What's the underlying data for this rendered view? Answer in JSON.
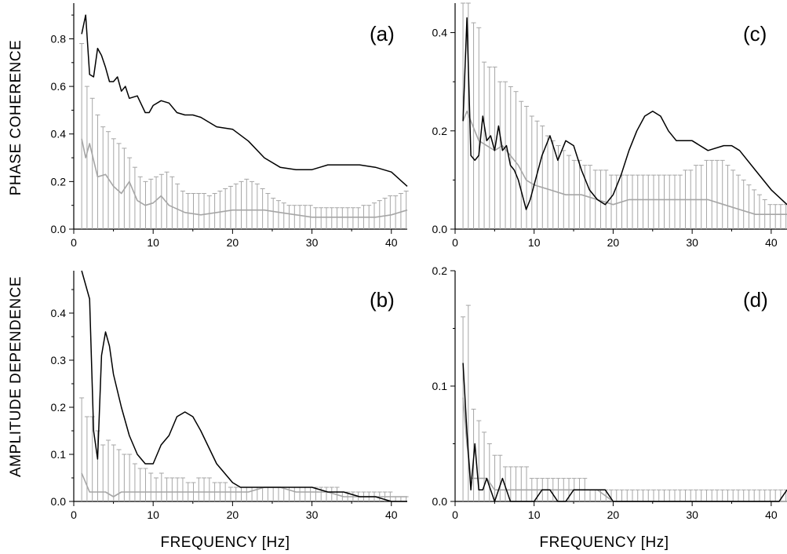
{
  "axis_titles": {
    "y_top": "PHASE  COHERENCE",
    "y_bottom": "AMPLITUDE  DEPENDENCE",
    "x_left": "FREQUENCY [Hz]",
    "x_right": "FREQUENCY [Hz]"
  },
  "colors": {
    "observed": "#000000",
    "surrogate_mean": "#a6a6a6",
    "error_bar": "#a6a6a6"
  },
  "chart_data": [
    {
      "panel": "(a)",
      "type": "line",
      "xlim": [
        0,
        42
      ],
      "ylim": [
        0,
        0.95
      ],
      "xticks": [
        0,
        10,
        20,
        30,
        40
      ],
      "xtick_labels": [
        "0",
        "10",
        "20",
        "30",
        "40"
      ],
      "yticks": [
        0,
        0.2,
        0.4,
        0.6,
        0.8
      ],
      "ytick_labels": [
        "0.0",
        "0.2",
        "0.4",
        "0.6",
        "0.8"
      ],
      "observed": {
        "x": [
          1,
          1.5,
          2,
          2.5,
          3,
          3.5,
          4,
          4.5,
          5,
          5.5,
          6,
          6.5,
          7,
          8,
          9,
          9.5,
          10,
          11,
          12,
          13,
          14,
          15,
          16,
          18,
          20,
          22,
          24,
          26,
          28,
          30,
          31,
          32,
          34,
          36,
          38,
          40,
          42
        ],
        "y": [
          0.82,
          0.9,
          0.65,
          0.64,
          0.76,
          0.73,
          0.68,
          0.62,
          0.62,
          0.64,
          0.58,
          0.6,
          0.55,
          0.56,
          0.49,
          0.49,
          0.52,
          0.54,
          0.53,
          0.49,
          0.48,
          0.48,
          0.47,
          0.43,
          0.42,
          0.37,
          0.3,
          0.26,
          0.25,
          0.25,
          0.26,
          0.27,
          0.27,
          0.27,
          0.26,
          0.24,
          0.18
        ]
      },
      "surrogate_mean": {
        "x": [
          1,
          1.5,
          2,
          3,
          4,
          5,
          6,
          7,
          8,
          9,
          10,
          11,
          12,
          14,
          16,
          18,
          20,
          22,
          24,
          26,
          28,
          30,
          32,
          34,
          36,
          38,
          40,
          42
        ],
        "y": [
          0.38,
          0.3,
          0.36,
          0.22,
          0.23,
          0.18,
          0.15,
          0.2,
          0.12,
          0.1,
          0.11,
          0.14,
          0.1,
          0.07,
          0.06,
          0.07,
          0.08,
          0.08,
          0.08,
          0.07,
          0.06,
          0.05,
          0.05,
          0.05,
          0.05,
          0.05,
          0.06,
          0.08
        ]
      },
      "error_bars": {
        "x_start": 1,
        "x_step": 0.67,
        "upper": [
          0.78,
          0.6,
          0.55,
          0.48,
          0.43,
          0.41,
          0.38,
          0.36,
          0.34,
          0.3,
          0.26,
          0.22,
          0.2,
          0.21,
          0.22,
          0.23,
          0.24,
          0.22,
          0.19,
          0.16,
          0.15,
          0.15,
          0.15,
          0.15,
          0.14,
          0.15,
          0.16,
          0.17,
          0.18,
          0.19,
          0.2,
          0.21,
          0.2,
          0.19,
          0.17,
          0.15,
          0.13,
          0.12,
          0.11,
          0.1,
          0.1,
          0.1,
          0.1,
          0.1,
          0.09,
          0.09,
          0.09,
          0.09,
          0.09,
          0.09,
          0.09,
          0.09,
          0.09,
          0.1,
          0.1,
          0.11,
          0.12,
          0.13,
          0.14,
          0.14,
          0.15,
          0.16
        ]
      }
    },
    {
      "panel": "(b)",
      "type": "line",
      "xlim": [
        0,
        42
      ],
      "ylim": [
        0,
        0.49
      ],
      "xticks": [
        0,
        10,
        20,
        30,
        40
      ],
      "xtick_labels": [
        "0",
        "10",
        "20",
        "30",
        "40"
      ],
      "yticks": [
        0,
        0.1,
        0.2,
        0.3,
        0.4
      ],
      "ytick_labels": [
        "0.0",
        "0.1",
        "0.2",
        "0.3",
        "0.4"
      ],
      "observed": {
        "x": [
          1,
          2,
          2.5,
          3,
          3.5,
          4,
          4.5,
          5,
          6,
          7,
          8,
          9,
          10,
          11,
          12,
          13,
          14,
          15,
          16,
          18,
          20,
          21,
          22,
          24,
          26,
          28,
          30,
          32,
          34,
          36,
          38,
          40,
          42
        ],
        "y": [
          0.49,
          0.43,
          0.15,
          0.09,
          0.31,
          0.36,
          0.33,
          0.27,
          0.2,
          0.14,
          0.1,
          0.08,
          0.08,
          0.12,
          0.14,
          0.18,
          0.19,
          0.18,
          0.15,
          0.08,
          0.04,
          0.03,
          0.03,
          0.03,
          0.03,
          0.03,
          0.03,
          0.02,
          0.02,
          0.01,
          0.01,
          0.0,
          0.0
        ]
      },
      "surrogate_mean": {
        "x": [
          1,
          2,
          3,
          4,
          5,
          6,
          8,
          10,
          12,
          14,
          16,
          18,
          20,
          22,
          24,
          26,
          28,
          30,
          32,
          34,
          36,
          38,
          40,
          42
        ],
        "y": [
          0.06,
          0.02,
          0.02,
          0.02,
          0.01,
          0.02,
          0.02,
          0.02,
          0.02,
          0.02,
          0.02,
          0.02,
          0.02,
          0.02,
          0.03,
          0.03,
          0.02,
          0.02,
          0.02,
          0.01,
          0.01,
          0.01,
          0.01,
          0.01
        ]
      },
      "error_bars": {
        "x_start": 1,
        "x_step": 0.67,
        "upper": [
          0.22,
          0.18,
          0.18,
          0.15,
          0.12,
          0.13,
          0.12,
          0.11,
          0.1,
          0.1,
          0.08,
          0.07,
          0.07,
          0.06,
          0.05,
          0.06,
          0.05,
          0.05,
          0.05,
          0.05,
          0.04,
          0.04,
          0.05,
          0.05,
          0.05,
          0.04,
          0.04,
          0.04,
          0.03,
          0.03,
          0.03,
          0.03,
          0.03,
          0.03,
          0.03,
          0.03,
          0.03,
          0.03,
          0.03,
          0.03,
          0.03,
          0.03,
          0.03,
          0.03,
          0.03,
          0.03,
          0.03,
          0.03,
          0.03,
          0.02,
          0.02,
          0.02,
          0.02,
          0.02,
          0.02,
          0.02,
          0.02,
          0.02,
          0.02,
          0.01,
          0.01,
          0.01
        ]
      }
    },
    {
      "panel": "(c)",
      "type": "line",
      "xlim": [
        0,
        42
      ],
      "ylim": [
        0,
        0.46
      ],
      "xticks": [
        0,
        10,
        20,
        30,
        40
      ],
      "xtick_labels": [
        "0",
        "10",
        "20",
        "30",
        "40"
      ],
      "yticks": [
        0,
        0.2,
        0.4
      ],
      "ytick_labels": [
        "0.0",
        "0.2",
        "0.4"
      ],
      "observed": {
        "x": [
          1,
          1.5,
          2,
          2.5,
          3,
          3.5,
          4,
          4.5,
          5,
          5.5,
          6,
          6.5,
          7,
          7.5,
          8,
          8.5,
          9,
          9.5,
          10,
          11,
          12,
          13,
          14,
          15,
          16,
          17,
          18,
          19,
          20,
          21,
          22,
          23,
          24,
          25,
          26,
          27,
          28,
          30,
          32,
          34,
          35,
          36,
          38,
          40,
          42
        ],
        "y": [
          0.22,
          0.43,
          0.15,
          0.14,
          0.15,
          0.23,
          0.18,
          0.19,
          0.16,
          0.21,
          0.16,
          0.17,
          0.13,
          0.12,
          0.1,
          0.07,
          0.04,
          0.06,
          0.09,
          0.15,
          0.19,
          0.14,
          0.18,
          0.17,
          0.12,
          0.08,
          0.06,
          0.05,
          0.07,
          0.11,
          0.16,
          0.2,
          0.23,
          0.24,
          0.23,
          0.2,
          0.18,
          0.18,
          0.16,
          0.17,
          0.17,
          0.16,
          0.12,
          0.08,
          0.05
        ]
      },
      "surrogate_mean": {
        "x": [
          1,
          1.5,
          2,
          3,
          4,
          5,
          6,
          7,
          8,
          9,
          10,
          12,
          14,
          16,
          18,
          20,
          22,
          24,
          26,
          28,
          30,
          32,
          34,
          36,
          38,
          40,
          42
        ],
        "y": [
          0.22,
          0.24,
          0.22,
          0.18,
          0.17,
          0.16,
          0.17,
          0.15,
          0.13,
          0.1,
          0.09,
          0.08,
          0.07,
          0.07,
          0.06,
          0.05,
          0.06,
          0.06,
          0.06,
          0.06,
          0.06,
          0.06,
          0.05,
          0.04,
          0.03,
          0.03,
          0.03
        ]
      },
      "error_bars": {
        "x_start": 1,
        "x_step": 0.67,
        "upper": [
          0.46,
          0.46,
          0.42,
          0.41,
          0.34,
          0.33,
          0.33,
          0.3,
          0.3,
          0.29,
          0.28,
          0.26,
          0.25,
          0.23,
          0.22,
          0.21,
          0.19,
          0.18,
          0.17,
          0.16,
          0.15,
          0.14,
          0.14,
          0.13,
          0.13,
          0.12,
          0.12,
          0.12,
          0.11,
          0.11,
          0.11,
          0.11,
          0.11,
          0.11,
          0.11,
          0.11,
          0.11,
          0.11,
          0.11,
          0.11,
          0.11,
          0.11,
          0.12,
          0.12,
          0.13,
          0.13,
          0.14,
          0.14,
          0.14,
          0.14,
          0.13,
          0.12,
          0.11,
          0.1,
          0.09,
          0.08,
          0.07,
          0.06,
          0.05,
          0.05,
          0.05,
          0.05
        ]
      }
    },
    {
      "panel": "(d)",
      "type": "line",
      "xlim": [
        0,
        42
      ],
      "ylim": [
        0,
        0.2
      ],
      "xticks": [
        0,
        10,
        20,
        30,
        40
      ],
      "xtick_labels": [
        "0",
        "10",
        "20",
        "30",
        "40"
      ],
      "yticks": [
        0,
        0.1,
        0.2
      ],
      "ytick_labels": [
        "0.0",
        "0.1",
        "0.2"
      ],
      "observed": {
        "x": [
          1,
          1.5,
          2,
          2.5,
          3,
          3.5,
          4,
          4.5,
          5,
          6,
          7,
          8,
          9,
          10,
          11,
          12,
          13,
          14,
          15,
          16,
          17,
          18,
          19,
          20,
          22,
          24,
          26,
          28,
          30,
          32,
          34,
          36,
          38,
          40,
          41,
          42
        ],
        "y": [
          0.12,
          0.06,
          0.01,
          0.05,
          0.01,
          0.01,
          0.02,
          0.01,
          0.0,
          0.02,
          0.0,
          0.0,
          0.0,
          0.0,
          0.01,
          0.01,
          0.0,
          0.0,
          0.01,
          0.01,
          0.01,
          0.01,
          0.01,
          0.0,
          0.0,
          0.0,
          0.0,
          0.0,
          0.0,
          0.0,
          0.0,
          0.0,
          0.0,
          0.0,
          0.0,
          0.01
        ]
      },
      "surrogate_mean": {
        "x": [
          1,
          1.5,
          2,
          3,
          4,
          5,
          6,
          8,
          10,
          12,
          14,
          16,
          18,
          20,
          22,
          24,
          26,
          28,
          30,
          32,
          34,
          36,
          38,
          40,
          42
        ],
        "y": [
          0.09,
          0.05,
          0.02,
          0.02,
          0.02,
          0.01,
          0.01,
          0.01,
          0.01,
          0.01,
          0.01,
          0.01,
          0.01,
          0.0,
          0.0,
          0.0,
          0.0,
          0.0,
          0.0,
          0.0,
          0.0,
          0.0,
          0.0,
          0.0,
          0.0
        ]
      },
      "error_bars": {
        "x_start": 1,
        "x_step": 0.67,
        "upper": [
          0.16,
          0.17,
          0.08,
          0.07,
          0.06,
          0.05,
          0.04,
          0.04,
          0.03,
          0.03,
          0.03,
          0.03,
          0.03,
          0.02,
          0.02,
          0.02,
          0.02,
          0.02,
          0.02,
          0.02,
          0.02,
          0.02,
          0.02,
          0.02,
          0.01,
          0.01,
          0.01,
          0.01,
          0.01,
          0.01,
          0.01,
          0.01,
          0.01,
          0.01,
          0.01,
          0.01,
          0.01,
          0.01,
          0.01,
          0.01,
          0.01,
          0.01,
          0.01,
          0.01,
          0.01,
          0.01,
          0.01,
          0.01,
          0.01,
          0.01,
          0.01,
          0.01,
          0.01,
          0.01,
          0.01,
          0.01,
          0.01,
          0.01,
          0.01,
          0.01,
          0.01,
          0.01
        ]
      }
    }
  ]
}
